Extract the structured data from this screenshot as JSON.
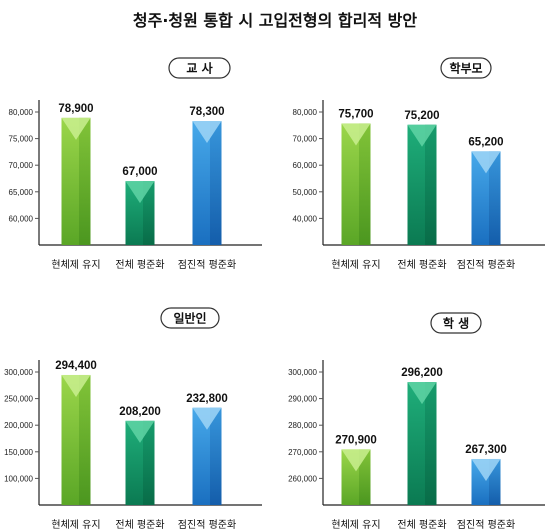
{
  "title": "청주·청원 통합 시 고입전형의 합리적 방안",
  "colors": {
    "green": "#7cc22e",
    "teal": "#139a6a",
    "blue": "#2a8fd8",
    "axis": "#222222",
    "grid_tick": "#555555"
  },
  "chart_data": [
    {
      "type": "bar",
      "panel_label": "교 사",
      "categories": [
        "현체제 유지",
        "전체 평준화",
        "점진적 평준화"
      ],
      "values": [
        78900,
        67000,
        78300
      ],
      "value_labels": [
        "78,900",
        "67,000",
        "78,300"
      ],
      "yticks": [
        60000,
        65000,
        70000,
        75000,
        80000
      ],
      "ytick_labels": [
        "60,000",
        "65,000",
        "70,000",
        "75,000",
        "80,000"
      ],
      "ylim": [
        55000,
        80000
      ]
    },
    {
      "type": "bar",
      "panel_label": "학부모",
      "categories": [
        "현체제 유지",
        "전체 평준화",
        "점진적 평준화"
      ],
      "values": [
        75700,
        75200,
        65200
      ],
      "value_labels": [
        "75,700",
        "75,200",
        "65,200"
      ],
      "yticks": [
        40000,
        50000,
        60000,
        70000,
        80000
      ],
      "ytick_labels": [
        "40,000",
        "50,000",
        "60,000",
        "70,000",
        "80,000"
      ],
      "ylim": [
        30000,
        80000
      ]
    },
    {
      "type": "bar",
      "panel_label": "일반인",
      "categories": [
        "현체제 유지",
        "전체 평준화",
        "점진적 평준화"
      ],
      "values": [
        294400,
        208200,
        232800
      ],
      "value_labels": [
        "294,400",
        "208,200",
        "232,800"
      ],
      "yticks": [
        100000,
        150000,
        200000,
        250000,
        300000
      ],
      "ytick_labels": [
        "100,000",
        "150,000",
        "200,000",
        "250,000",
        "300,000"
      ],
      "ylim": [
        50000,
        300000
      ]
    },
    {
      "type": "bar",
      "panel_label": "학 생",
      "categories": [
        "현체제 유지",
        "전체 평준화",
        "점진적 평준화"
      ],
      "values": [
        270900,
        296200,
        267300
      ],
      "value_labels": [
        "270,900",
        "296,200",
        "267,300"
      ],
      "yticks": [
        260000,
        270000,
        280000,
        290000,
        300000
      ],
      "ytick_labels": [
        "260,000",
        "270,000",
        "280,000",
        "290,000",
        "300,000"
      ],
      "ylim": [
        250000,
        300000
      ]
    }
  ]
}
